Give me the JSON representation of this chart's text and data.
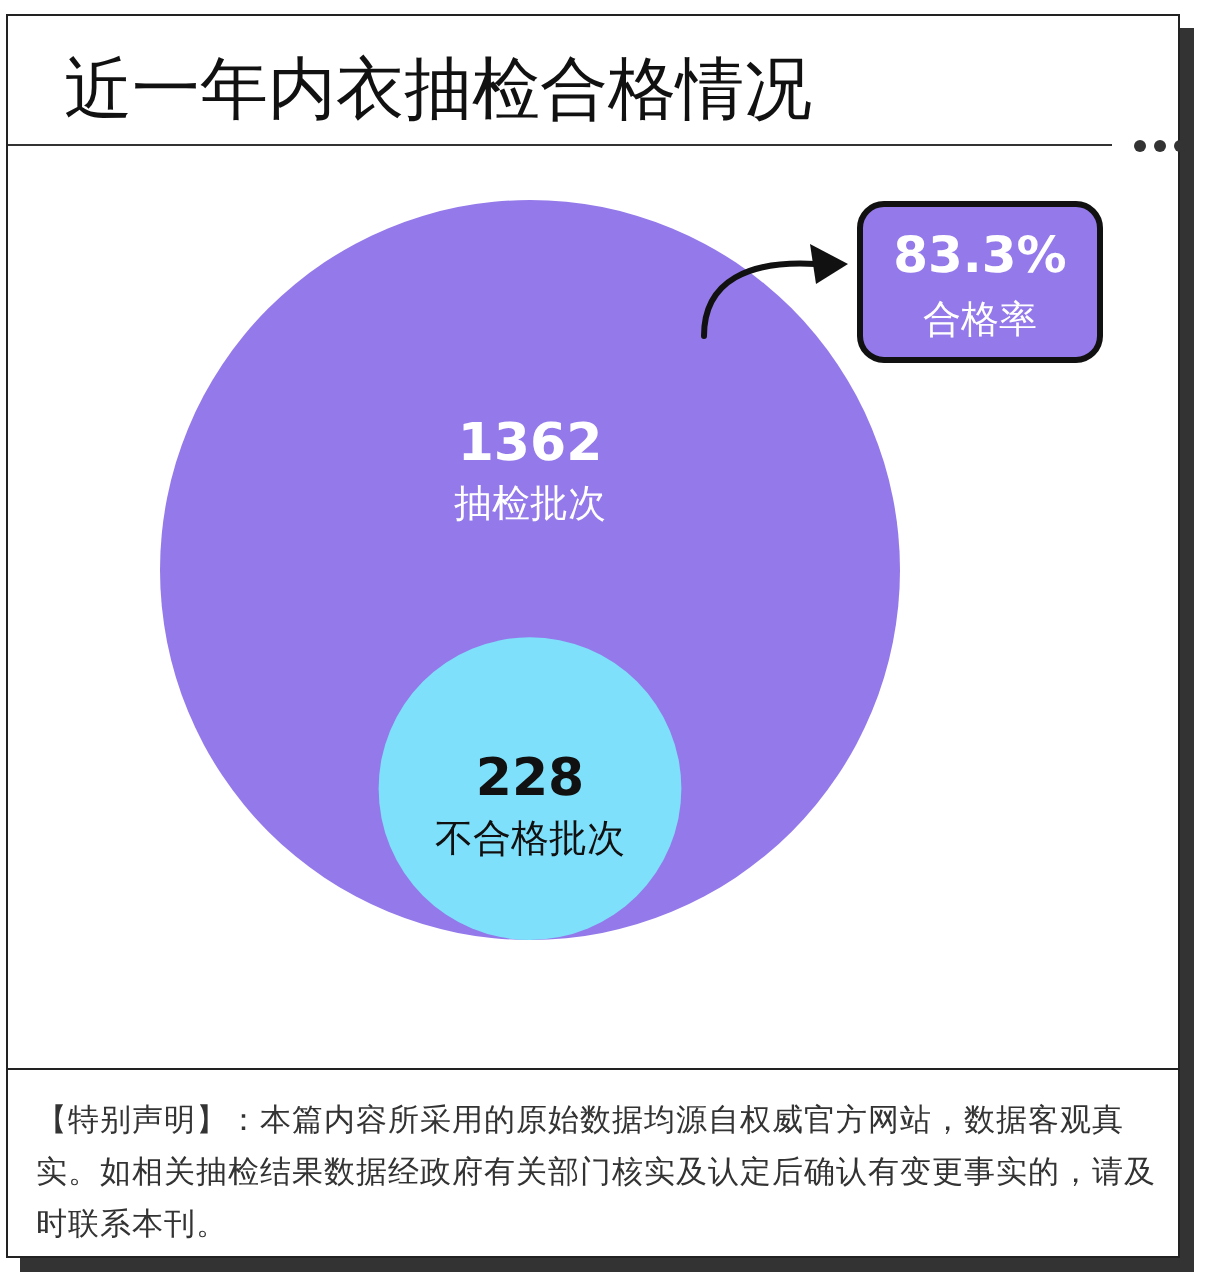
{
  "chart_data": {
    "type": "other",
    "title": "近一年内衣抽检合格情况",
    "categories": [
      "抽检批次",
      "不合格批次"
    ],
    "values": [
      1362,
      228
    ],
    "colors": [
      "#9479ea",
      "#7ee0fa"
    ],
    "data_labels": true,
    "annotations": [
      "83.3%",
      "合格率",
      "【特别声明】：本篇内容所采用的原始数据均源自权威官方网站，数据客观真实。如相关抽检结果数据经政府有关部门核实及认定后确认有变更事实的，请及时联系本刊。"
    ]
  }
}
